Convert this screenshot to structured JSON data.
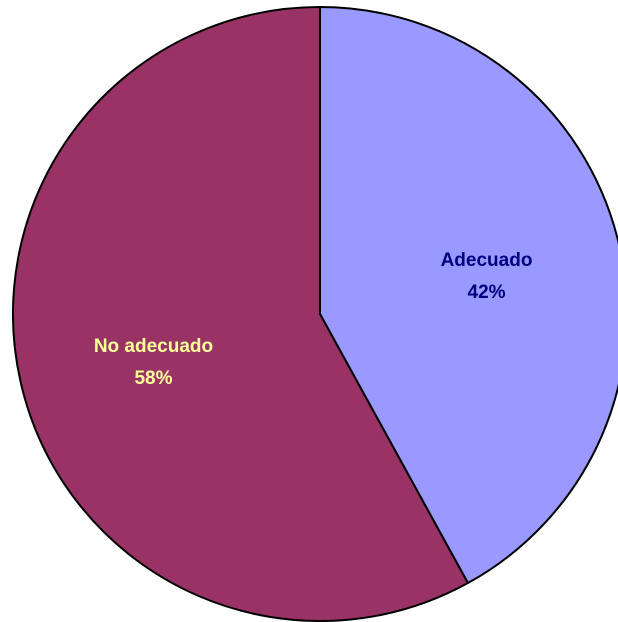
{
  "chart_data": {
    "type": "pie",
    "slices": [
      {
        "label": "Adecuado",
        "percent_label": "42%",
        "value": 42,
        "color": "#9999FF",
        "text_color": "#000080"
      },
      {
        "label": "No adecuado",
        "percent_label": "58%",
        "value": 58,
        "color": "#993366",
        "text_color": "#FFFF99"
      }
    ]
  }
}
